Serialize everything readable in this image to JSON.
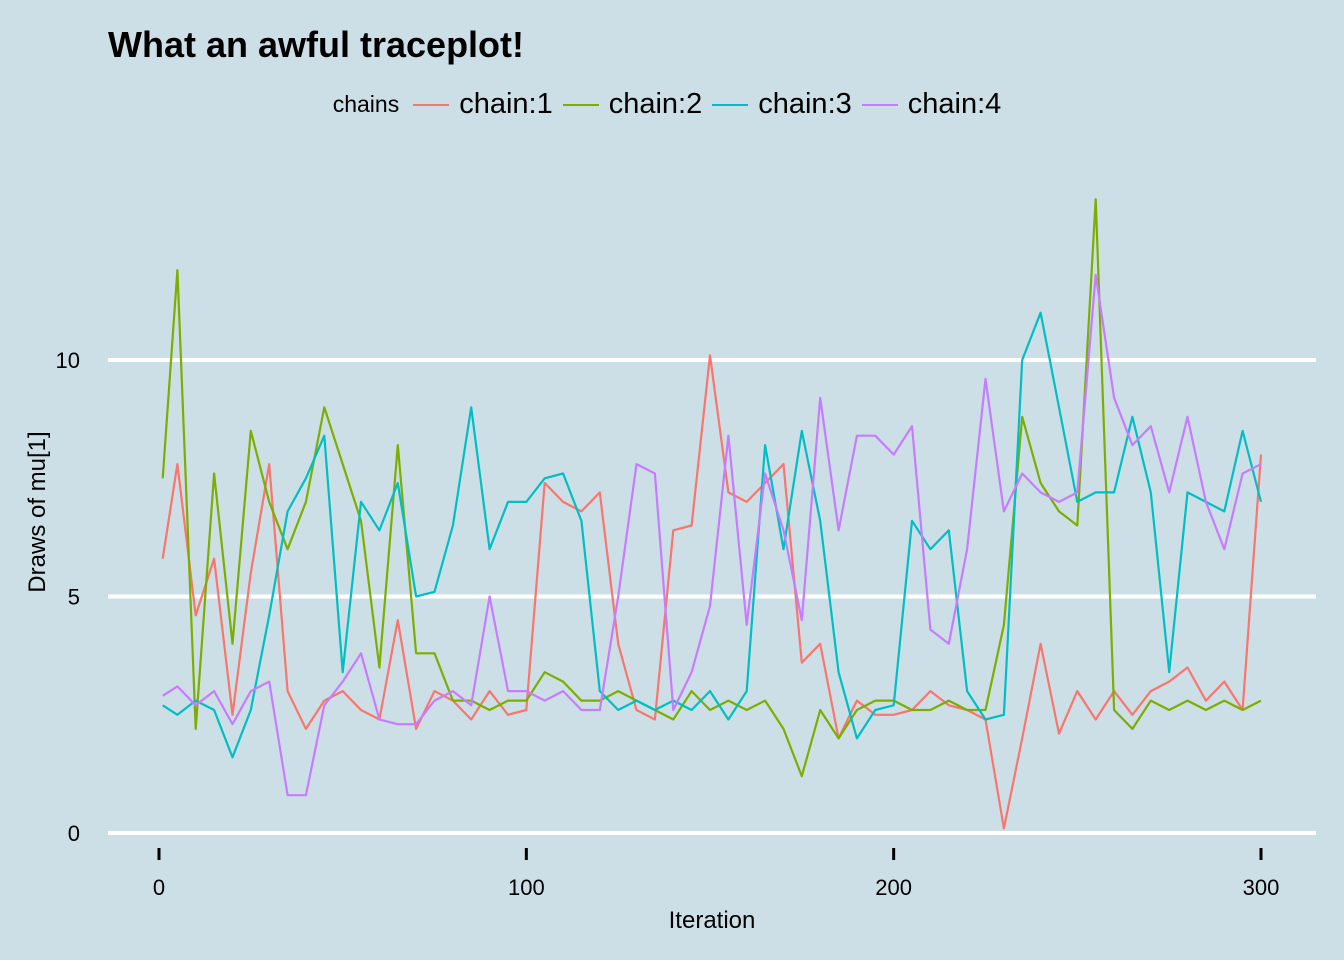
{
  "chart_data": {
    "type": "line",
    "title": "What an awful traceplot!",
    "xlabel": "Iteration",
    "ylabel": "Draws of mu[1]",
    "xlim": [
      0,
      300
    ],
    "ylim": [
      0,
      13.5
    ],
    "xticks": [
      "0",
      "100",
      "200",
      "300"
    ],
    "yticks": [
      "0",
      "5",
      "10"
    ],
    "grid": "horizontal major",
    "legend": {
      "title": "chains",
      "placement": "top"
    },
    "x": [
      1,
      5,
      10,
      15,
      20,
      25,
      30,
      35,
      40,
      45,
      50,
      55,
      60,
      65,
      70,
      75,
      80,
      85,
      90,
      95,
      100,
      105,
      110,
      115,
      120,
      125,
      130,
      135,
      140,
      145,
      150,
      155,
      160,
      165,
      170,
      175,
      180,
      185,
      190,
      195,
      200,
      205,
      210,
      215,
      220,
      225,
      230,
      235,
      240,
      245,
      250,
      255,
      260,
      265,
      270,
      275,
      280,
      285,
      290,
      295,
      300
    ],
    "series": [
      {
        "name": "chain:1",
        "color": "#F8766D",
        "values": [
          5.8,
          7.8,
          4.6,
          5.8,
          2.5,
          5.5,
          7.8,
          3.0,
          2.2,
          2.8,
          3.0,
          2.6,
          2.4,
          4.5,
          2.2,
          3.0,
          2.8,
          2.4,
          3.0,
          2.5,
          2.6,
          7.4,
          7.0,
          6.8,
          7.2,
          4.0,
          2.6,
          2.4,
          6.4,
          6.5,
          10.1,
          7.2,
          7.0,
          7.4,
          7.8,
          3.6,
          4.0,
          2.0,
          2.8,
          2.5,
          2.5,
          2.6,
          3.0,
          2.7,
          2.6,
          2.4,
          0.1,
          2.0,
          4.0,
          2.1,
          3.0,
          2.4,
          3.0,
          2.5,
          3.0,
          3.2,
          3.5,
          2.8,
          3.2,
          2.6,
          8.0
        ]
      },
      {
        "name": "chain:2",
        "color": "#7CAE00",
        "values": [
          7.5,
          11.9,
          2.2,
          7.6,
          4.0,
          8.5,
          7.0,
          6.0,
          7.0,
          9.0,
          7.8,
          6.6,
          3.5,
          8.2,
          3.8,
          3.8,
          2.8,
          2.8,
          2.6,
          2.8,
          2.8,
          3.4,
          3.2,
          2.8,
          2.8,
          3.0,
          2.8,
          2.6,
          2.4,
          3.0,
          2.6,
          2.8,
          2.6,
          2.8,
          2.2,
          1.2,
          2.6,
          2.0,
          2.6,
          2.8,
          2.8,
          2.6,
          2.6,
          2.8,
          2.6,
          2.6,
          4.4,
          8.8,
          7.4,
          6.8,
          6.5,
          13.4,
          2.6,
          2.2,
          2.8,
          2.6,
          2.8,
          2.6,
          2.8,
          2.6,
          2.8
        ]
      },
      {
        "name": "chain:3",
        "color": "#00BFC4",
        "values": [
          2.7,
          2.5,
          2.8,
          2.6,
          1.6,
          2.6,
          4.6,
          6.8,
          7.5,
          8.4,
          3.4,
          7.0,
          6.4,
          7.4,
          5.0,
          5.1,
          6.5,
          9.0,
          6.0,
          7.0,
          7.0,
          7.5,
          7.6,
          6.6,
          3.0,
          2.6,
          2.8,
          2.6,
          2.8,
          2.6,
          3.0,
          2.4,
          3.0,
          8.2,
          6.0,
          8.5,
          6.6,
          3.4,
          2.0,
          2.6,
          2.7,
          6.6,
          6.0,
          6.4,
          3.0,
          2.4,
          2.5,
          10.0,
          11.0,
          9.0,
          7.0,
          7.2,
          7.2,
          8.8,
          7.2,
          3.4,
          7.2,
          7.0,
          6.8,
          8.5,
          7.0
        ]
      },
      {
        "name": "chain:4",
        "color": "#C77CFF",
        "values": [
          2.9,
          3.1,
          2.7,
          3.0,
          2.3,
          3.0,
          3.2,
          0.8,
          0.8,
          2.7,
          3.2,
          3.8,
          2.4,
          2.3,
          2.3,
          2.8,
          3.0,
          2.7,
          5.0,
          3.0,
          3.0,
          2.8,
          3.0,
          2.6,
          2.6,
          5.0,
          7.8,
          7.6,
          2.6,
          3.4,
          4.8,
          8.4,
          4.4,
          7.6,
          6.4,
          4.5,
          9.2,
          6.4,
          8.4,
          8.4,
          8.0,
          8.6,
          4.3,
          4.0,
          6.0,
          9.6,
          6.8,
          7.6,
          7.2,
          7.0,
          7.2,
          11.8,
          9.2,
          8.2,
          8.6,
          7.2,
          8.8,
          7.0,
          6.0,
          7.6,
          7.8
        ]
      }
    ]
  }
}
